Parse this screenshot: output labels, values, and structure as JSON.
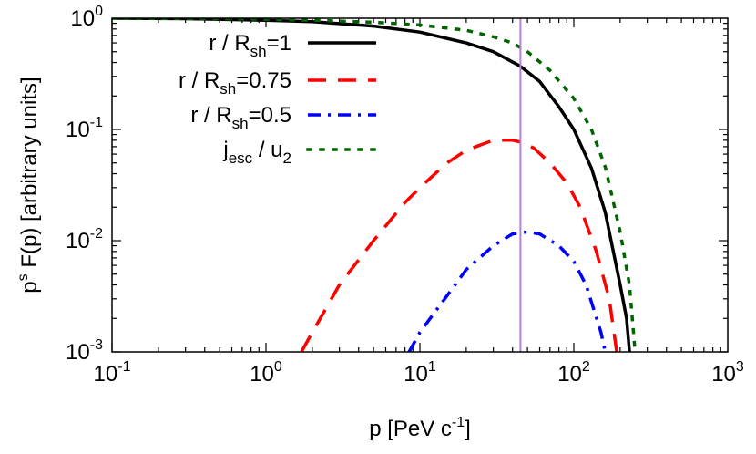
{
  "chart_data": {
    "type": "line",
    "title": "",
    "xlabel": {
      "base": "p [PeV c",
      "sup": "-1",
      "tail": "]"
    },
    "ylabel": {
      "pre": "p",
      "sup": "s",
      "post": " F(p) [arbitrary units]"
    },
    "x_scale": "log",
    "y_scale": "log",
    "xlim": [
      0.1,
      1000
    ],
    "ylim": [
      0.001,
      1
    ],
    "x_ticks": [
      {
        "value": 0.1,
        "base": "10",
        "exp": "-1"
      },
      {
        "value": 1,
        "base": "10",
        "exp": "0"
      },
      {
        "value": 10,
        "base": "10",
        "exp": "1"
      },
      {
        "value": 100,
        "base": "10",
        "exp": "2"
      },
      {
        "value": 1000,
        "base": "10",
        "exp": "3"
      }
    ],
    "y_ticks": [
      {
        "value": 0.001,
        "base": "10",
        "exp": "-3"
      },
      {
        "value": 0.01,
        "base": "10",
        "exp": "-2"
      },
      {
        "value": 0.1,
        "base": "10",
        "exp": "-1"
      },
      {
        "value": 1,
        "base": "10",
        "exp": "0"
      }
    ],
    "vline": {
      "x": 45,
      "color": "#b57edc"
    },
    "legend_position": "top-left",
    "series": [
      {
        "name": {
          "pre": "r / R",
          "sub": "sh",
          "post": "=1"
        },
        "color": "#000000",
        "dash": "solid",
        "x": [
          0.1,
          0.3,
          1,
          2,
          5,
          10,
          20,
          30,
          45,
          60,
          80,
          100,
          130,
          160,
          200,
          220,
          230
        ],
        "y": [
          1.0,
          0.99,
          0.96,
          0.93,
          0.85,
          0.75,
          0.6,
          0.5,
          0.37,
          0.27,
          0.16,
          0.1,
          0.045,
          0.018,
          0.004,
          0.002,
          0.001
        ]
      },
      {
        "name": {
          "pre": "r / R",
          "sub": "sh",
          "post": "=0.75"
        },
        "color": "#ff0000",
        "dash": "dashed",
        "x": [
          1.7,
          2,
          3,
          5,
          8,
          10,
          15,
          20,
          30,
          40,
          45,
          55,
          70,
          90,
          110,
          140,
          170,
          190
        ],
        "y": [
          0.001,
          0.0015,
          0.004,
          0.01,
          0.022,
          0.03,
          0.05,
          0.065,
          0.08,
          0.08,
          0.077,
          0.068,
          0.05,
          0.033,
          0.02,
          0.008,
          0.003,
          0.001
        ]
      },
      {
        "name": {
          "pre": "r / R",
          "sub": "sh",
          "post": "=0.5"
        },
        "color": "#0000ff",
        "dash": "dashdot",
        "x": [
          8.5,
          10,
          15,
          20,
          30,
          40,
          50,
          60,
          80,
          100,
          120,
          150,
          160
        ],
        "y": [
          0.001,
          0.0015,
          0.0032,
          0.0055,
          0.009,
          0.0115,
          0.012,
          0.0115,
          0.009,
          0.0065,
          0.004,
          0.0015,
          0.001
        ]
      },
      {
        "name": {
          "pre": "j",
          "sub": "esc",
          "post": " / u",
          "post_sub": "2"
        },
        "color": "#006400",
        "dash": "dotted",
        "x": [
          0.1,
          0.5,
          1,
          2,
          5,
          10,
          20,
          30,
          40,
          50,
          70,
          100,
          130,
          160,
          200,
          230,
          250
        ],
        "y": [
          1.0,
          0.99,
          0.98,
          0.96,
          0.92,
          0.87,
          0.78,
          0.68,
          0.6,
          0.5,
          0.34,
          0.19,
          0.1,
          0.046,
          0.012,
          0.004,
          0.001
        ]
      }
    ]
  }
}
